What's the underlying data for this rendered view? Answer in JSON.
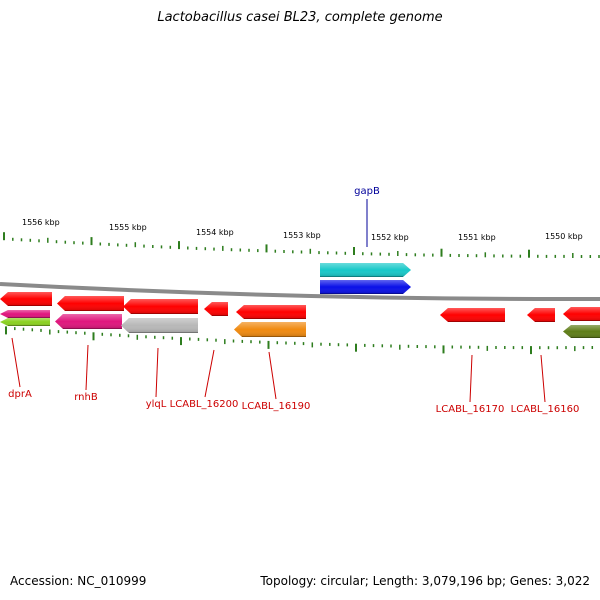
{
  "header": {
    "title": "Lactobacillus casei BL23, complete genome"
  },
  "footer": {
    "accession": "Accession: NC_010999",
    "summary": "Topology: circular; Length: 3,079,196 bp; Genes: 3,022"
  },
  "colors": {
    "backbone": "#8a8a8a",
    "tick": "#2e7d1e",
    "label_red": "#cc0000",
    "label_blue": "#00009a"
  },
  "scale_labels": [
    "1556 kbp",
    "1555 kbp",
    "1554 kbp",
    "1553 kbp",
    "1552 kbp",
    "1551 kbp",
    "1550 kbp"
  ],
  "genes": [
    {
      "name": "dprA",
      "color": "#ff0000",
      "strand": "-"
    },
    {
      "name": "",
      "color": "#e0157d",
      "strand": "-"
    },
    {
      "name": "",
      "color": "#8bd11f",
      "strand": "-"
    },
    {
      "name": "rnhB",
      "color": "#ff0000",
      "strand": "-"
    },
    {
      "name": "",
      "color": "#e0157d",
      "strand": "-"
    },
    {
      "name": "ylqL",
      "color": "#ff0000",
      "strand": "-"
    },
    {
      "name": "",
      "color": "#b8b8b8",
      "strand": "-"
    },
    {
      "name": "LCABL_16200",
      "color": "#ff0000",
      "strand": "-"
    },
    {
      "name": "LCABL_16190",
      "color": "#ff0000",
      "strand": "-"
    },
    {
      "name": "",
      "color": "#f08a10",
      "strand": "-"
    },
    {
      "name": "gapB",
      "color": "#18c8c8",
      "strand": "+"
    },
    {
      "name": "",
      "color": "#0a10e8",
      "strand": "+"
    },
    {
      "name": "LCABL_16170",
      "color": "#ff0000",
      "strand": "-"
    },
    {
      "name": "LCABL_16160",
      "color": "#ff0000",
      "strand": "-"
    },
    {
      "name": "",
      "color": "#ff0000",
      "strand": "-"
    },
    {
      "name": "",
      "color": "#5f7d18",
      "strand": "-"
    }
  ]
}
